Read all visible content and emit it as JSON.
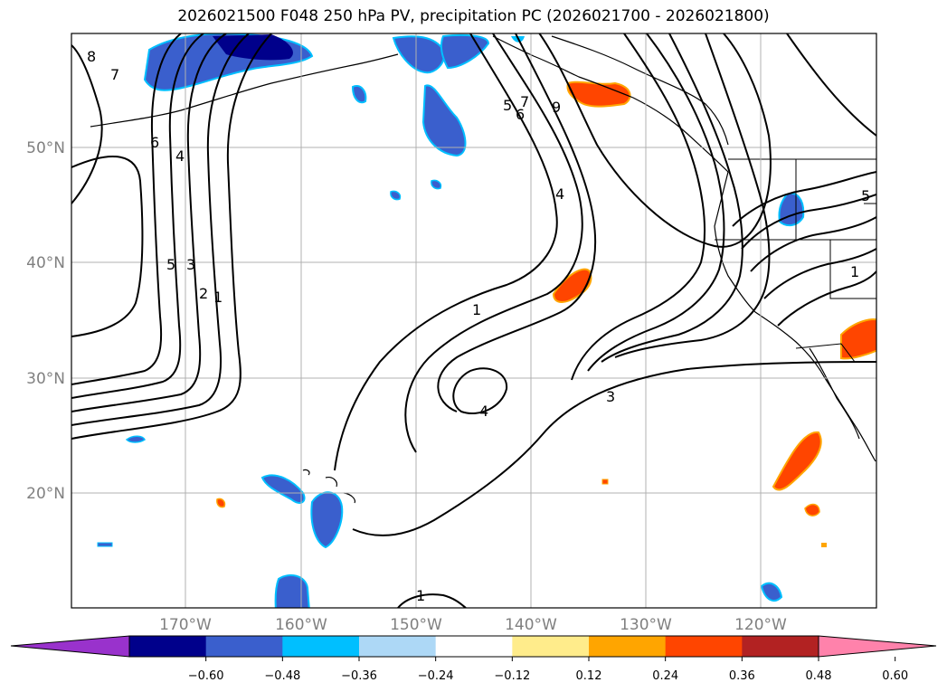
{
  "title": "2026021500 F048 250 hPa PV, precipitation PC (2026021700 - 2026021800)",
  "map": {
    "extent": {
      "lon_min": -180,
      "lon_max": -110,
      "lat_min": 10,
      "lat_max": 60
    },
    "lat_labels": [
      "20°N",
      "30°N",
      "40°N",
      "50°N"
    ],
    "lon_labels": [
      "170°W",
      "160°W",
      "150°W",
      "140°W",
      "130°W",
      "120°W"
    ],
    "grid": true,
    "contour_labels": [
      "8",
      "7",
      "6",
      "5",
      "4",
      "3",
      "2",
      "1",
      "9",
      "1",
      "4",
      "3",
      "1",
      "1",
      "5",
      "4",
      "7",
      "6",
      "5"
    ]
  },
  "colorbar": {
    "ticks": [
      "−0.60",
      "−0.48",
      "−0.36",
      "−0.24",
      "−0.12",
      "0.12",
      "0.24",
      "0.36",
      "0.48",
      "0.60"
    ],
    "colors": [
      "#9932cc",
      "#00008b",
      "#3a5fcd",
      "#00bfff",
      "#add8f6",
      "#ffffff",
      "#ffec8b",
      "#ffa500",
      "#ff4500",
      "#b22222",
      "#ff82ab"
    ]
  }
}
